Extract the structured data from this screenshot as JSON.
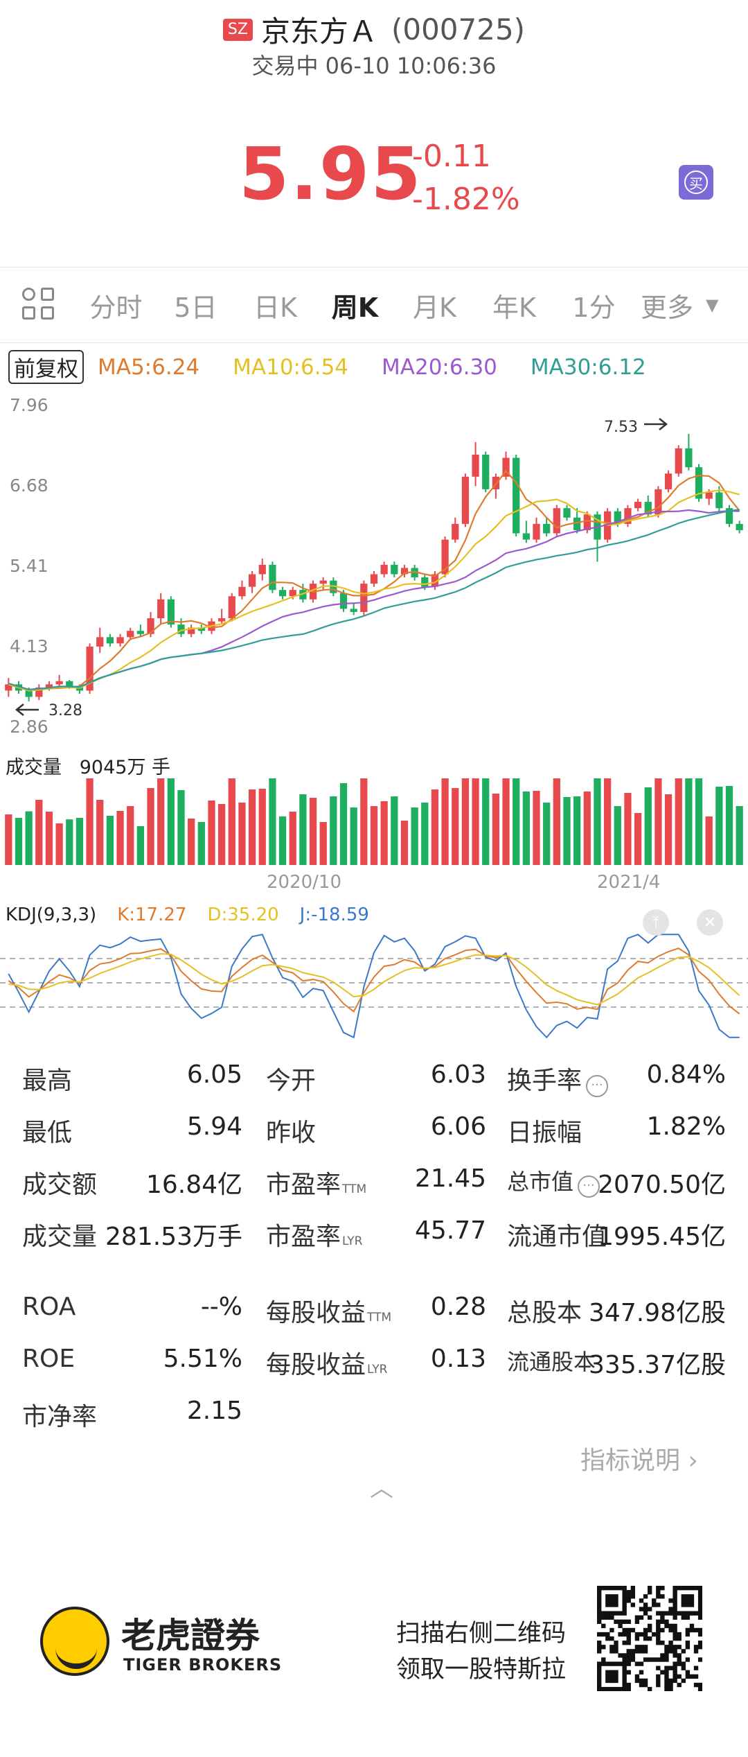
{
  "header": {
    "exchange_badge": "SZ",
    "stock_name": "京东方Ａ",
    "stock_code": "(000725)",
    "status": "交易中 06-10 10:06:36",
    "price": "5.95",
    "change_abs": "-0.11",
    "change_pct": "-1.82%",
    "buy_icon": "买",
    "price_color": "#e8494d"
  },
  "tabs": [
    "分时",
    "5日",
    "日K",
    "周K",
    "月K",
    "年K",
    "1分"
  ],
  "tab_more": "更多",
  "active_tab": "周K",
  "ma": {
    "fq_label": "前复权",
    "items": [
      {
        "label": "MA5:6.24",
        "color": "#e07a2d"
      },
      {
        "label": "MA10:6.54",
        "color": "#e5c024"
      },
      {
        "label": "MA20:6.30",
        "color": "#9b59d0"
      },
      {
        "label": "MA30:6.12",
        "color": "#2f9e94"
      }
    ]
  },
  "chart_data": {
    "type": "candlestick",
    "y_ticks": [
      "7.96",
      "6.68",
      "5.41",
      "4.13",
      "2.86"
    ],
    "ylim": [
      2.86,
      7.96
    ],
    "high_marker": "7.53",
    "low_marker": "3.28",
    "x_labels": [
      "2020/10",
      "2021/4"
    ],
    "volume_label": "成交量",
    "volume_value": "9045万 手",
    "kdj_label": "KDJ(9,3,3)",
    "kdj_k": "K:17.27",
    "kdj_d": "D:35.20",
    "kdj_j": "J:-18.59",
    "kdj_colors": {
      "k": "#e07a2d",
      "d": "#e5c024",
      "j": "#3a78c9"
    },
    "up_color": "#e8494d",
    "down_color": "#1daf5f",
    "candles": [
      [
        3.45,
        3.65,
        3.35,
        3.55
      ],
      [
        3.55,
        3.6,
        3.4,
        3.45
      ],
      [
        3.45,
        3.5,
        3.28,
        3.35
      ],
      [
        3.35,
        3.55,
        3.3,
        3.5
      ],
      [
        3.5,
        3.6,
        3.45,
        3.55
      ],
      [
        3.55,
        3.7,
        3.5,
        3.6
      ],
      [
        3.6,
        3.62,
        3.48,
        3.5
      ],
      [
        3.5,
        3.55,
        3.4,
        3.45
      ],
      [
        3.45,
        4.2,
        3.4,
        4.15
      ],
      [
        4.15,
        4.45,
        4.05,
        4.3
      ],
      [
        4.3,
        4.35,
        4.15,
        4.2
      ],
      [
        4.2,
        4.35,
        4.15,
        4.3
      ],
      [
        4.3,
        4.45,
        4.25,
        4.4
      ],
      [
        4.4,
        4.5,
        4.3,
        4.35
      ],
      [
        4.35,
        4.7,
        4.3,
        4.6
      ],
      [
        4.6,
        5.0,
        4.5,
        4.9
      ],
      [
        4.9,
        4.95,
        4.45,
        4.5
      ],
      [
        4.5,
        4.6,
        4.3,
        4.35
      ],
      [
        4.35,
        4.5,
        4.3,
        4.45
      ],
      [
        4.45,
        4.5,
        4.35,
        4.4
      ],
      [
        4.4,
        4.6,
        4.35,
        4.55
      ],
      [
        4.55,
        4.75,
        4.5,
        4.6
      ],
      [
        4.6,
        5.0,
        4.55,
        4.95
      ],
      [
        4.95,
        5.2,
        4.9,
        5.1
      ],
      [
        5.1,
        5.35,
        5.0,
        5.3
      ],
      [
        5.3,
        5.55,
        5.2,
        5.45
      ],
      [
        5.45,
        5.5,
        5.0,
        5.05
      ],
      [
        5.05,
        5.1,
        4.9,
        4.95
      ],
      [
        4.95,
        5.1,
        4.9,
        5.05
      ],
      [
        5.05,
        5.15,
        4.85,
        4.9
      ],
      [
        4.9,
        5.2,
        4.85,
        5.15
      ],
      [
        5.15,
        5.25,
        5.05,
        5.2
      ],
      [
        5.2,
        5.25,
        4.95,
        5.0
      ],
      [
        5.0,
        5.05,
        4.7,
        4.75
      ],
      [
        4.75,
        4.85,
        4.65,
        4.7
      ],
      [
        4.7,
        5.2,
        4.65,
        5.15
      ],
      [
        5.15,
        5.35,
        5.1,
        5.3
      ],
      [
        5.3,
        5.5,
        5.25,
        5.45
      ],
      [
        5.45,
        5.5,
        5.25,
        5.3
      ],
      [
        5.3,
        5.45,
        5.25,
        5.4
      ],
      [
        5.4,
        5.45,
        5.2,
        5.25
      ],
      [
        5.25,
        5.3,
        5.05,
        5.1
      ],
      [
        5.1,
        5.35,
        5.05,
        5.3
      ],
      [
        5.3,
        5.9,
        5.25,
        5.85
      ],
      [
        5.85,
        6.2,
        5.8,
        6.1
      ],
      [
        6.1,
        6.9,
        6.05,
        6.85
      ],
      [
        6.85,
        7.4,
        6.7,
        7.2
      ],
      [
        7.2,
        7.25,
        6.6,
        6.65
      ],
      [
        6.65,
        6.9,
        6.5,
        6.85
      ],
      [
        6.85,
        7.25,
        6.8,
        7.15
      ],
      [
        7.15,
        7.2,
        5.9,
        5.95
      ],
      [
        5.95,
        6.15,
        5.8,
        5.85
      ],
      [
        5.85,
        6.2,
        5.8,
        6.1
      ],
      [
        6.1,
        6.2,
        5.9,
        5.95
      ],
      [
        5.95,
        6.4,
        5.9,
        6.35
      ],
      [
        6.35,
        6.4,
        6.15,
        6.2
      ],
      [
        6.2,
        6.35,
        5.95,
        6.0
      ],
      [
        6.0,
        6.3,
        5.95,
        6.25
      ],
      [
        6.25,
        6.3,
        5.5,
        5.85
      ],
      [
        5.85,
        6.35,
        5.8,
        6.3
      ],
      [
        6.3,
        6.35,
        6.05,
        6.1
      ],
      [
        6.1,
        6.4,
        6.05,
        6.35
      ],
      [
        6.35,
        6.5,
        6.3,
        6.45
      ],
      [
        6.45,
        6.55,
        6.2,
        6.25
      ],
      [
        6.25,
        6.7,
        6.2,
        6.65
      ],
      [
        6.65,
        6.95,
        6.6,
        6.9
      ],
      [
        6.9,
        7.35,
        6.85,
        7.3
      ],
      [
        7.3,
        7.53,
        6.95,
        7.0
      ],
      [
        7.0,
        7.05,
        6.45,
        6.5
      ],
      [
        6.5,
        6.65,
        6.4,
        6.6
      ],
      [
        6.6,
        6.7,
        6.3,
        6.35
      ],
      [
        6.35,
        6.4,
        6.05,
        6.1
      ],
      [
        6.1,
        6.15,
        5.95,
        6.0
      ]
    ]
  },
  "stats": {
    "rows": [
      [
        {
          "l": "最高",
          "v": "6.05"
        },
        {
          "l": "今开",
          "v": "6.03"
        },
        {
          "l": "换手率",
          "v": "0.84%",
          "info": true
        }
      ],
      [
        {
          "l": "最低",
          "v": "5.94"
        },
        {
          "l": "昨收",
          "v": "6.06"
        },
        {
          "l": "日振幅",
          "v": "1.82%"
        }
      ],
      [
        {
          "l": "成交额",
          "v": "16.84亿"
        },
        {
          "l": "市盈率",
          "sup": "TTM",
          "v": "21.45"
        },
        {
          "l": "总市值",
          "v": "2070.50亿",
          "info": true,
          "small": true
        }
      ],
      [
        {
          "l": "成交量",
          "v": "281.53万手"
        },
        {
          "l": "市盈率",
          "sup": "LYR",
          "v": "45.77"
        },
        {
          "l": "流通市值",
          "v": "1995.45亿"
        }
      ],
      [
        {
          "l": "ROA",
          "v": "--%"
        },
        {
          "l": "每股收益",
          "sup": "TTM",
          "v": "0.28"
        },
        {
          "l": "总股本",
          "v": "347.98亿股"
        }
      ],
      [
        {
          "l": "ROE",
          "v": "5.51%"
        },
        {
          "l": "每股收益",
          "sup": "LYR",
          "v": "0.13"
        },
        {
          "l": "流通股本",
          "v": "335.37亿股",
          "small": true
        }
      ],
      [
        {
          "l": "市净率",
          "v": "2.15"
        }
      ]
    ],
    "indicator_link": "指标说明 ›"
  },
  "footer": {
    "brand_cn": "老虎證券",
    "brand_en": "TIGER BROKERS",
    "promo_line1": "扫描右侧二维码",
    "promo_line2": "领取一股特斯拉"
  }
}
